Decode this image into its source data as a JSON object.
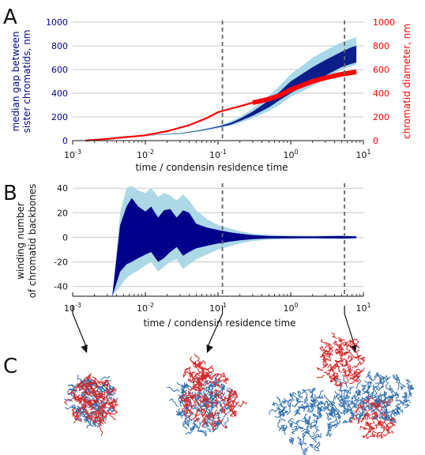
{
  "panels": {
    "a": "A",
    "b": "B",
    "c": "C"
  },
  "chart_data": [
    {
      "type": "area",
      "panel": "A",
      "xscale": "log",
      "xlim": [
        0.001,
        10
      ],
      "xlabel": "time / condensin residence time",
      "ylabel_left": [
        "median gap between",
        "sister chromatids, nm"
      ],
      "ylabel_right": "chromatid diameter, nm",
      "ylim": [
        0,
        1000
      ],
      "y2lim": [
        0,
        1000
      ],
      "xticks": [
        {
          "value": 0.001,
          "base": "10",
          "exp": "-3"
        },
        {
          "value": 0.01,
          "base": "10",
          "exp": "-2"
        },
        {
          "value": 0.1,
          "base": "10",
          "exp": "-1"
        },
        {
          "value": 1,
          "base": "10",
          "exp": "0"
        },
        {
          "value": 10,
          "base": "10",
          "exp": "1"
        }
      ],
      "yticks": [
        "0",
        "200",
        "400",
        "600",
        "800",
        "1000"
      ],
      "y2ticks": [
        "0",
        "200",
        "400",
        "600",
        "800",
        "1000"
      ],
      "vlines": [
        0.115,
        5.5
      ],
      "grid": "horizontal",
      "colors": {
        "gap_inner": "#0b1e8a",
        "gap_outer": "#a9d8e8",
        "diameter": "#ff0000"
      },
      "series": [
        {
          "role": "gap_outer_band",
          "x": [
            0.0015,
            0.003,
            0.01,
            0.03,
            0.06,
            0.1,
            0.15,
            0.2,
            0.3,
            0.5,
            0.7,
            1,
            1.5,
            2,
            3,
            5,
            7,
            8
          ],
          "lower": [
            30,
            33,
            40,
            55,
            80,
            105,
            125,
            150,
            190,
            250,
            300,
            370,
            420,
            460,
            520,
            600,
            630,
            640
          ],
          "upper": [
            30,
            35,
            45,
            65,
            95,
            125,
            165,
            200,
            270,
            380,
            460,
            560,
            640,
            700,
            760,
            830,
            860,
            875
          ]
        },
        {
          "role": "gap_inner_band",
          "x": [
            0.0015,
            0.003,
            0.01,
            0.03,
            0.06,
            0.1,
            0.15,
            0.2,
            0.3,
            0.5,
            0.7,
            1,
            1.5,
            2,
            3,
            5,
            7,
            8
          ],
          "lower": [
            30,
            34,
            42,
            58,
            85,
            112,
            135,
            165,
            210,
            280,
            340,
            400,
            460,
            500,
            550,
            620,
            650,
            660
          ],
          "upper": [
            30,
            34,
            43,
            62,
            90,
            118,
            150,
            185,
            245,
            340,
            410,
            500,
            570,
            620,
            680,
            750,
            790,
            800
          ]
        },
        {
          "role": "diameter",
          "x": [
            0.0015,
            0.003,
            0.01,
            0.02,
            0.04,
            0.07,
            0.1,
            0.15,
            0.2,
            0.3,
            0.5,
            0.7,
            1,
            2,
            3,
            5,
            8
          ],
          "y": [
            0,
            15,
            45,
            80,
            130,
            190,
            240,
            270,
            290,
            320,
            350,
            380,
            430,
            500,
            530,
            560,
            580
          ]
        }
      ]
    },
    {
      "type": "area",
      "panel": "B",
      "xscale": "log",
      "xlim": [
        0.001,
        10
      ],
      "xlabel": "time / condensin residence time",
      "ylabel": [
        "winding number",
        "of chromatid backbones"
      ],
      "ylim": [
        -48,
        44
      ],
      "xticks": [
        {
          "value": 0.001,
          "base": "10",
          "exp": "-3"
        },
        {
          "value": 0.01,
          "base": "10",
          "exp": "-2"
        },
        {
          "value": 0.1,
          "base": "10",
          "exp": "-1"
        },
        {
          "value": 1,
          "base": "10",
          "exp": "0"
        },
        {
          "value": 10,
          "base": "10",
          "exp": "1"
        }
      ],
      "yticks": [
        "-40",
        "-20",
        "0",
        "20",
        "40"
      ],
      "vlines": [
        0.115,
        5.5
      ],
      "grid": "horizontal",
      "colors": {
        "inner": "#00008b",
        "outer": "#add8e6"
      },
      "series": [
        {
          "role": "outer_band",
          "x": [
            0.0035,
            0.0045,
            0.0055,
            0.0065,
            0.008,
            0.01,
            0.012,
            0.015,
            0.018,
            0.022,
            0.027,
            0.033,
            0.04,
            0.05,
            0.07,
            0.1,
            0.15,
            0.2,
            0.3,
            0.5,
            1,
            2,
            5,
            8
          ],
          "lower": [
            -48,
            -40,
            -33,
            -30,
            -27,
            -23,
            -20,
            -28,
            -24,
            -20,
            -18,
            -26,
            -22,
            -18,
            -14,
            -10,
            -7,
            -5,
            -3,
            -2,
            -1.5,
            -1.2,
            -1.5,
            -1
          ],
          "upper": [
            -48,
            20,
            40,
            42,
            38,
            36,
            40,
            33,
            36,
            34,
            30,
            35,
            30,
            22,
            15,
            10,
            7,
            5,
            3,
            2,
            1.5,
            1.2,
            1.5,
            1
          ]
        },
        {
          "role": "inner_band",
          "x": [
            0.0035,
            0.0045,
            0.0055,
            0.0065,
            0.008,
            0.01,
            0.012,
            0.015,
            0.018,
            0.022,
            0.027,
            0.033,
            0.04,
            0.05,
            0.07,
            0.1,
            0.15,
            0.2,
            0.3,
            0.5,
            1,
            2,
            5,
            8
          ],
          "lower": [
            -48,
            -28,
            -22,
            -20,
            -17,
            -14,
            -12,
            -20,
            -17,
            -12,
            -8,
            -15,
            -12,
            -9,
            -7,
            -5,
            -3.5,
            -2.5,
            -1.5,
            -1,
            -0.8,
            -0.7,
            -1,
            -0.7
          ],
          "upper": [
            -48,
            10,
            25,
            32,
            25,
            21,
            25,
            16,
            22,
            23,
            16,
            22,
            20,
            11,
            8,
            6,
            4,
            3,
            1.8,
            1,
            0.8,
            0.7,
            1,
            0.7
          ]
        }
      ]
    }
  ],
  "arrows": {
    "from_x": [
      0.001,
      0.115,
      5.5
    ]
  },
  "snapshots": [
    {
      "name": "snapshot-early",
      "colors": [
        "#2f6fad",
        "#d62728"
      ]
    },
    {
      "name": "snapshot-middle",
      "colors": [
        "#2f6fad",
        "#d62728"
      ]
    },
    {
      "name": "snapshot-late",
      "colors": [
        "#2f6fad",
        "#d62728"
      ]
    }
  ]
}
